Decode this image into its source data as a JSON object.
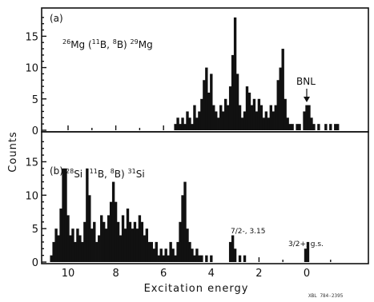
{
  "figure": {
    "xlabel": "Excitation energy",
    "ylabel": "Counts",
    "credit": "XBL 784-2395",
    "xticks": [
      "10",
      "8",
      "6",
      "4",
      "2",
      "0"
    ]
  },
  "chart_data": [
    {
      "type": "bar",
      "panel": "(a)",
      "reaction": "26Mg (11B, 8B) 29Mg",
      "xlabel": "Excitation energy",
      "ylabel": "Counts",
      "xlim": [
        11.2,
        -1.5
      ],
      "ylim": [
        0,
        19
      ],
      "yticks": [
        0,
        5,
        10,
        15
      ],
      "annotations": [
        {
          "text": "BNL",
          "x": 0.0,
          "y": 4.5,
          "arrow": true
        }
      ],
      "bins": [
        {
          "x": 5.5,
          "y": 1
        },
        {
          "x": 5.4,
          "y": 2
        },
        {
          "x": 5.3,
          "y": 1
        },
        {
          "x": 5.2,
          "y": 2
        },
        {
          "x": 5.1,
          "y": 1
        },
        {
          "x": 5.0,
          "y": 3
        },
        {
          "x": 4.9,
          "y": 2
        },
        {
          "x": 4.8,
          "y": 1
        },
        {
          "x": 4.7,
          "y": 4
        },
        {
          "x": 4.6,
          "y": 2
        },
        {
          "x": 4.5,
          "y": 3
        },
        {
          "x": 4.4,
          "y": 5
        },
        {
          "x": 4.3,
          "y": 8
        },
        {
          "x": 4.2,
          "y": 10
        },
        {
          "x": 4.1,
          "y": 6
        },
        {
          "x": 4.0,
          "y": 9
        },
        {
          "x": 3.9,
          "y": 4
        },
        {
          "x": 3.8,
          "y": 3
        },
        {
          "x": 3.7,
          "y": 2
        },
        {
          "x": 3.6,
          "y": 4
        },
        {
          "x": 3.5,
          "y": 3
        },
        {
          "x": 3.4,
          "y": 5
        },
        {
          "x": 3.3,
          "y": 4
        },
        {
          "x": 3.2,
          "y": 7
        },
        {
          "x": 3.1,
          "y": 12
        },
        {
          "x": 3.0,
          "y": 18
        },
        {
          "x": 2.9,
          "y": 9
        },
        {
          "x": 2.8,
          "y": 4
        },
        {
          "x": 2.7,
          "y": 2
        },
        {
          "x": 2.6,
          "y": 3
        },
        {
          "x": 2.5,
          "y": 7
        },
        {
          "x": 2.4,
          "y": 6
        },
        {
          "x": 2.3,
          "y": 4
        },
        {
          "x": 2.2,
          "y": 5
        },
        {
          "x": 2.1,
          "y": 3
        },
        {
          "x": 2.0,
          "y": 5
        },
        {
          "x": 1.9,
          "y": 4
        },
        {
          "x": 1.8,
          "y": 2
        },
        {
          "x": 1.7,
          "y": 3
        },
        {
          "x": 1.6,
          "y": 2
        },
        {
          "x": 1.5,
          "y": 4
        },
        {
          "x": 1.4,
          "y": 3
        },
        {
          "x": 1.3,
          "y": 4
        },
        {
          "x": 1.2,
          "y": 8
        },
        {
          "x": 1.1,
          "y": 10
        },
        {
          "x": 1.0,
          "y": 13
        },
        {
          "x": 0.9,
          "y": 5
        },
        {
          "x": 0.8,
          "y": 2
        },
        {
          "x": 0.7,
          "y": 1
        },
        {
          "x": 0.6,
          "y": 1
        },
        {
          "x": 0.4,
          "y": 1
        },
        {
          "x": 0.3,
          "y": 1
        },
        {
          "x": 0.1,
          "y": 3
        },
        {
          "x": 0.0,
          "y": 4
        },
        {
          "x": -0.1,
          "y": 4
        },
        {
          "x": -0.2,
          "y": 2
        },
        {
          "x": -0.3,
          "y": 1
        },
        {
          "x": -0.5,
          "y": 1
        },
        {
          "x": -0.8,
          "y": 1
        },
        {
          "x": -1.0,
          "y": 1
        },
        {
          "x": -1.2,
          "y": 1
        },
        {
          "x": -1.3,
          "y": 1
        }
      ]
    },
    {
      "type": "bar",
      "panel": "(b)",
      "reaction": "28Si (11B, 8B) 31Si",
      "xlabel": "Excitation energy",
      "ylabel": "Counts",
      "xlim": [
        11.2,
        -1.5
      ],
      "ylim": [
        0,
        19
      ],
      "yticks": [
        0,
        5,
        10,
        15
      ],
      "annotations": [
        {
          "text": "7/2-, 3.15",
          "x": 3.1,
          "y": 4
        },
        {
          "text": "3/2+, g.s.",
          "x": 0.0,
          "y": 2.5
        }
      ],
      "bins": [
        {
          "x": 10.7,
          "y": 1
        },
        {
          "x": 10.6,
          "y": 3
        },
        {
          "x": 10.5,
          "y": 5
        },
        {
          "x": 10.4,
          "y": 4
        },
        {
          "x": 10.3,
          "y": 8
        },
        {
          "x": 10.2,
          "y": 14
        },
        {
          "x": 10.1,
          "y": 14
        },
        {
          "x": 10.0,
          "y": 7
        },
        {
          "x": 9.9,
          "y": 4
        },
        {
          "x": 9.8,
          "y": 5
        },
        {
          "x": 9.7,
          "y": 3
        },
        {
          "x": 9.6,
          "y": 5
        },
        {
          "x": 9.5,
          "y": 4
        },
        {
          "x": 9.4,
          "y": 3
        },
        {
          "x": 9.3,
          "y": 6
        },
        {
          "x": 9.2,
          "y": 14
        },
        {
          "x": 9.1,
          "y": 10
        },
        {
          "x": 9.0,
          "y": 5
        },
        {
          "x": 8.9,
          "y": 6
        },
        {
          "x": 8.8,
          "y": 3
        },
        {
          "x": 8.7,
          "y": 4
        },
        {
          "x": 8.6,
          "y": 7
        },
        {
          "x": 8.5,
          "y": 6
        },
        {
          "x": 8.4,
          "y": 5
        },
        {
          "x": 8.3,
          "y": 7
        },
        {
          "x": 8.2,
          "y": 9
        },
        {
          "x": 8.1,
          "y": 12
        },
        {
          "x": 8.0,
          "y": 9
        },
        {
          "x": 7.9,
          "y": 6
        },
        {
          "x": 7.8,
          "y": 4
        },
        {
          "x": 7.7,
          "y": 7
        },
        {
          "x": 7.6,
          "y": 5
        },
        {
          "x": 7.5,
          "y": 8
        },
        {
          "x": 7.4,
          "y": 6
        },
        {
          "x": 7.3,
          "y": 5
        },
        {
          "x": 7.2,
          "y": 6
        },
        {
          "x": 7.1,
          "y": 5
        },
        {
          "x": 7.0,
          "y": 7
        },
        {
          "x": 6.9,
          "y": 6
        },
        {
          "x": 6.8,
          "y": 4
        },
        {
          "x": 6.7,
          "y": 5
        },
        {
          "x": 6.6,
          "y": 3
        },
        {
          "x": 6.5,
          "y": 3
        },
        {
          "x": 6.4,
          "y": 2
        },
        {
          "x": 6.3,
          "y": 3
        },
        {
          "x": 6.2,
          "y": 1
        },
        {
          "x": 6.1,
          "y": 2
        },
        {
          "x": 6.0,
          "y": 1
        },
        {
          "x": 5.9,
          "y": 2
        },
        {
          "x": 5.8,
          "y": 1
        },
        {
          "x": 5.7,
          "y": 3
        },
        {
          "x": 5.6,
          "y": 2
        },
        {
          "x": 5.5,
          "y": 1
        },
        {
          "x": 5.4,
          "y": 3
        },
        {
          "x": 5.3,
          "y": 6
        },
        {
          "x": 5.2,
          "y": 10
        },
        {
          "x": 5.1,
          "y": 12
        },
        {
          "x": 5.0,
          "y": 5
        },
        {
          "x": 4.9,
          "y": 3
        },
        {
          "x": 4.8,
          "y": 2
        },
        {
          "x": 4.7,
          "y": 1
        },
        {
          "x": 4.6,
          "y": 2
        },
        {
          "x": 4.5,
          "y": 1
        },
        {
          "x": 4.4,
          "y": 1
        },
        {
          "x": 4.2,
          "y": 1
        },
        {
          "x": 4.0,
          "y": 1
        },
        {
          "x": 3.2,
          "y": 3
        },
        {
          "x": 3.1,
          "y": 4
        },
        {
          "x": 3.0,
          "y": 2
        },
        {
          "x": 2.8,
          "y": 1
        },
        {
          "x": 2.6,
          "y": 1
        },
        {
          "x": 0.05,
          "y": 2
        },
        {
          "x": -0.05,
          "y": 3
        }
      ]
    }
  ]
}
